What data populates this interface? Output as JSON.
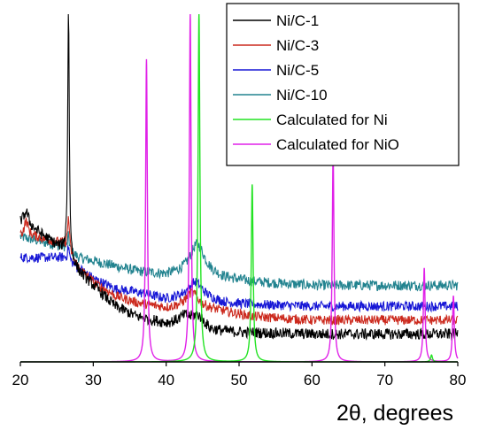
{
  "chart_data": {
    "type": "line",
    "xlabel": "2θ, degrees",
    "ylabel": "",
    "xlim": [
      20,
      80
    ],
    "ylim": [
      0,
      100
    ],
    "xticks": [
      20,
      30,
      40,
      50,
      60,
      70,
      80
    ],
    "legend_position": "top-right",
    "grid": false,
    "series": [
      {
        "name": "Ni/C-1",
        "color": "#000000",
        "baseline": [
          [
            20,
            40
          ],
          [
            22,
            38
          ],
          [
            24,
            35
          ],
          [
            26,
            32
          ],
          [
            28,
            26
          ],
          [
            30,
            22
          ],
          [
            33,
            16
          ],
          [
            36,
            13
          ],
          [
            40,
            11
          ],
          [
            44,
            11
          ],
          [
            46,
            9
          ],
          [
            50,
            8.5
          ],
          [
            60,
            8
          ],
          [
            70,
            8
          ],
          [
            80,
            8
          ]
        ],
        "peaks": [
          [
            20.8,
            4,
            0.4
          ],
          [
            26.6,
            75,
            0.12
          ],
          [
            42.5,
            2,
            1.0
          ],
          [
            44.5,
            2.5,
            1.0
          ]
        ],
        "noise": 1.6
      },
      {
        "name": "Ni/C-3",
        "color": "#cc2a1e",
        "baseline": [
          [
            20,
            36
          ],
          [
            22,
            36
          ],
          [
            24,
            35
          ],
          [
            26,
            34
          ],
          [
            28,
            27
          ],
          [
            30,
            23
          ],
          [
            33,
            19
          ],
          [
            36,
            17
          ],
          [
            40,
            15.5
          ],
          [
            44,
            16
          ],
          [
            48,
            14.5
          ],
          [
            52,
            13
          ],
          [
            60,
            12
          ],
          [
            70,
            12
          ],
          [
            80,
            12
          ]
        ],
        "peaks": [
          [
            20.8,
            4.5,
            0.35
          ],
          [
            26.6,
            10,
            0.15
          ],
          [
            43.5,
            4,
            1.0
          ]
        ],
        "noise": 1.4
      },
      {
        "name": "Ni/C-5",
        "color": "#1717d6",
        "baseline": [
          [
            20,
            30
          ],
          [
            22,
            30
          ],
          [
            24,
            30
          ],
          [
            26,
            30
          ],
          [
            28,
            27
          ],
          [
            30,
            24
          ],
          [
            33,
            21
          ],
          [
            36,
            20
          ],
          [
            40,
            18
          ],
          [
            44,
            19
          ],
          [
            48,
            17
          ],
          [
            52,
            16.5
          ],
          [
            60,
            16
          ],
          [
            70,
            16
          ],
          [
            80,
            16
          ]
        ],
        "peaks": [
          [
            26.6,
            4,
            0.15
          ],
          [
            44.0,
            4,
            1.2
          ]
        ],
        "noise": 1.4
      },
      {
        "name": "Ni/C-10",
        "color": "#22838f",
        "baseline": [
          [
            20,
            36
          ],
          [
            22,
            35
          ],
          [
            24,
            34
          ],
          [
            26,
            33
          ],
          [
            28,
            30
          ],
          [
            30,
            29
          ],
          [
            33,
            27.5
          ],
          [
            36,
            26
          ],
          [
            40,
            25
          ],
          [
            44,
            26
          ],
          [
            48,
            24
          ],
          [
            52,
            23
          ],
          [
            60,
            22
          ],
          [
            70,
            22
          ],
          [
            80,
            22
          ]
        ],
        "peaks": [
          [
            26.6,
            4,
            0.15
          ],
          [
            44.3,
            8,
            1.2
          ]
        ],
        "noise": 1.5
      },
      {
        "name": "Calculated for Ni",
        "color": "#22e322",
        "baseline": [
          [
            20,
            0
          ],
          [
            80,
            0
          ]
        ],
        "peaks": [
          [
            44.5,
            100,
            0.15
          ],
          [
            51.8,
            51,
            0.15
          ],
          [
            76.4,
            2,
            0.15
          ]
        ],
        "noise": 0
      },
      {
        "name": "Calculated for NiO",
        "color": "#e020e8",
        "baseline": [
          [
            20,
            0
          ],
          [
            80,
            0
          ]
        ],
        "peaks": [
          [
            37.3,
            87,
            0.14
          ],
          [
            43.3,
            100,
            0.14
          ],
          [
            62.9,
            60,
            0.14
          ],
          [
            75.4,
            27,
            0.14
          ],
          [
            79.4,
            19,
            0.14
          ]
        ],
        "noise": 0
      }
    ]
  }
}
